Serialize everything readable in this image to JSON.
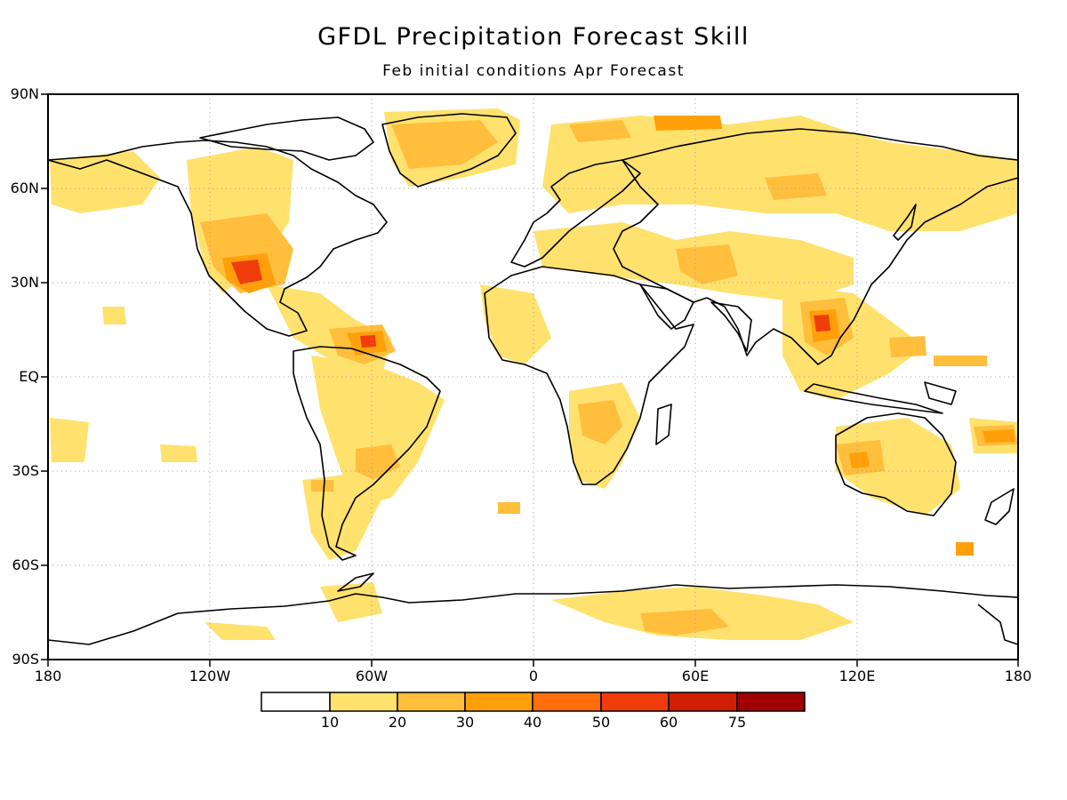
{
  "title": "GFDL Precipitation Forecast Skill",
  "subtitle": "Feb initial conditions  Apr Forecast",
  "lat_labels": [
    "90N",
    "60N",
    "30N",
    "EQ",
    "30S",
    "60S",
    "90S"
  ],
  "lon_labels": [
    "180",
    "120W",
    "60W",
    "0",
    "60E",
    "120E",
    "180"
  ],
  "colorbar": {
    "levels": [
      "10",
      "20",
      "30",
      "40",
      "50",
      "60",
      "75"
    ],
    "colors": [
      "#ffffff",
      "#ffe16e",
      "#ffbe3c",
      "#ffa00a",
      "#ff6e0a",
      "#f03c0a",
      "#d21e00",
      "#a00000"
    ]
  },
  "colors": {
    "frame": "#000000",
    "grid": "#a0a0a0",
    "coast": "#000000"
  }
}
